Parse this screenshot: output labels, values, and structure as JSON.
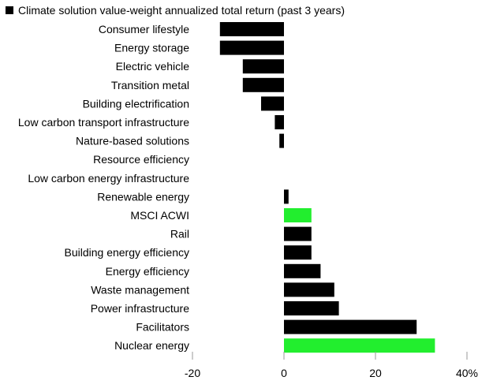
{
  "colors": {
    "default": "#000000",
    "highlight": "#22ee2e",
    "axis": "#999999"
  },
  "chart_data": {
    "type": "bar",
    "orientation": "horizontal",
    "legend": {
      "label": "Climate solution value-weight annualized total return (past 3 years)",
      "position": "top-left"
    },
    "categories": [
      "Consumer lifestyle",
      "Energy storage",
      "Electric vehicle",
      "Transition metal",
      "Building electrification",
      "Low carbon transport infrastructure",
      "Nature-based solutions",
      "Resource efficiency",
      "Low carbon energy infrastructure",
      "Renewable energy",
      "MSCI ACWI",
      "Rail",
      "Building energy efficiency",
      "Energy efficiency",
      "Waste management",
      "Power infrastructure",
      "Facilitators",
      "Nuclear energy"
    ],
    "values": [
      -14,
      -14,
      -9,
      -9,
      -5,
      -2,
      -1,
      0,
      0,
      1,
      6,
      6,
      6,
      8,
      11,
      12,
      29,
      33
    ],
    "highlighted": [
      "MSCI ACWI",
      "Nuclear energy"
    ],
    "xlim": [
      -20,
      40
    ],
    "xticks": [
      -20,
      0,
      20,
      40
    ],
    "xtick_labels": [
      "-20",
      "0",
      "20",
      "40%"
    ],
    "grid": false
  }
}
